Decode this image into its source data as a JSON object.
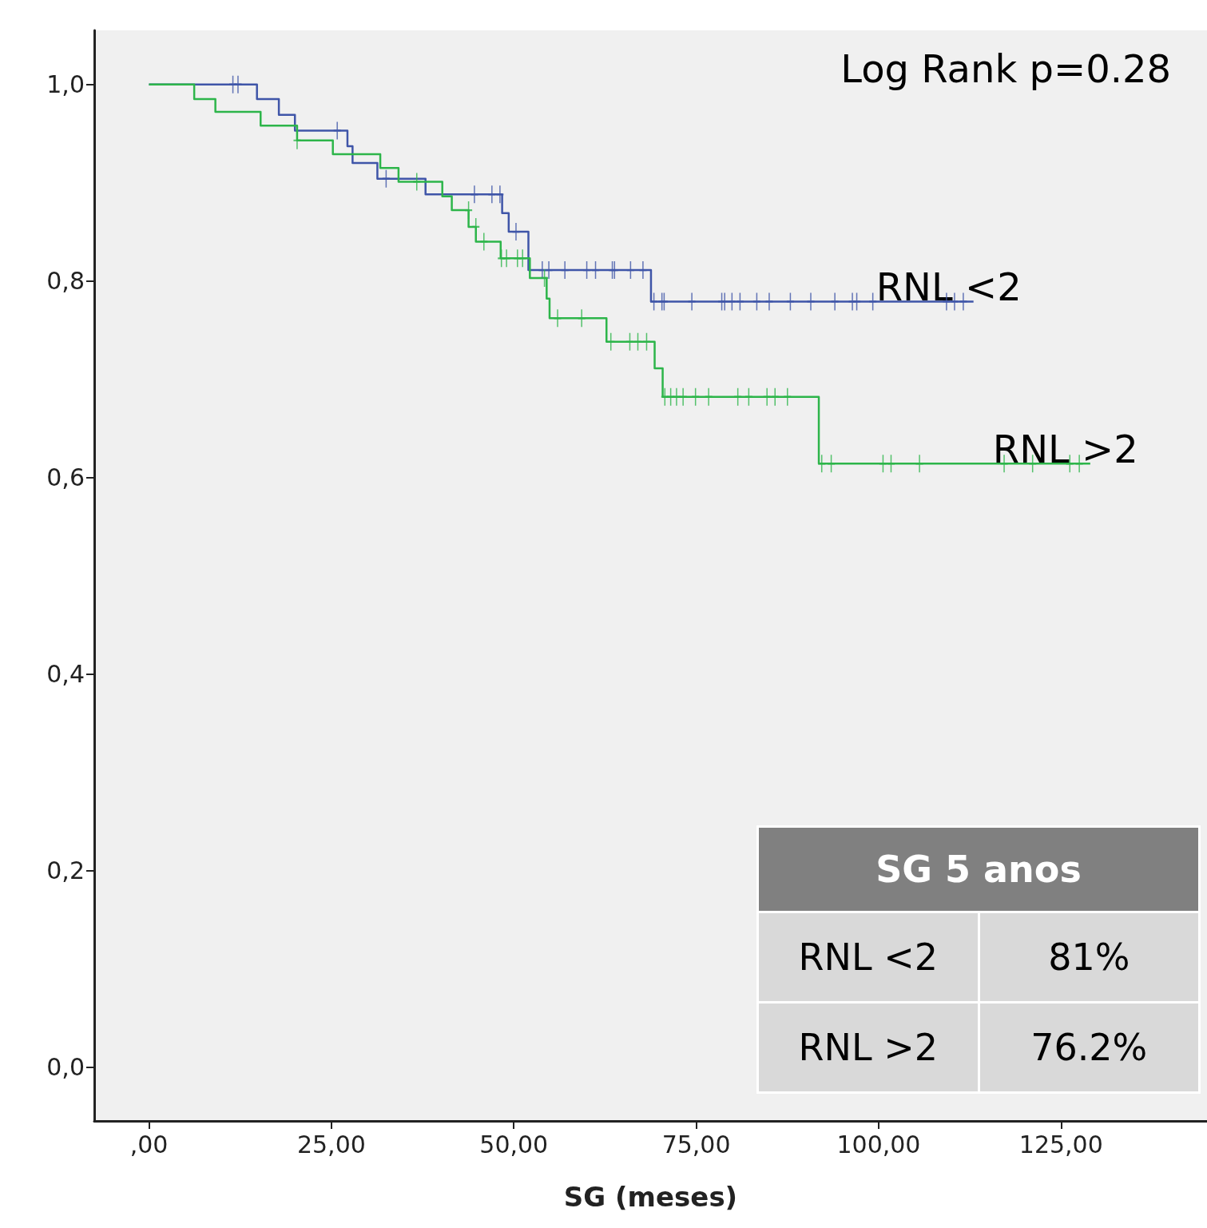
{
  "chart_data": {
    "type": "step",
    "xlabel": "SG (meses)",
    "xlim": [
      -7.5,
      145
    ],
    "xticks": [
      {
        "value": 0,
        "label": ",00"
      },
      {
        "value": 25,
        "label": "25,00"
      },
      {
        "value": 50,
        "label": "50,00"
      },
      {
        "value": 75,
        "label": "75,00"
      },
      {
        "value": 100,
        "label": "100,00"
      },
      {
        "value": 125,
        "label": "125,00"
      }
    ],
    "ylim": [
      -0.055,
      1.055
    ],
    "yticks": [
      {
        "value": 0,
        "label": "0,0"
      },
      {
        "value": 0.2,
        "label": "0,2"
      },
      {
        "value": 0.4,
        "label": "0,4"
      },
      {
        "value": 0.6,
        "label": "0,6"
      },
      {
        "value": 0.8,
        "label": "0,8"
      },
      {
        "value": 1,
        "label": "1,0"
      }
    ],
    "grid": false,
    "legend": false,
    "marker": "none",
    "line_style": "solid",
    "annotations": [
      "Log Rank p=0.28",
      "SG 5 anos",
      "RNL <2",
      "81%",
      "RNL >2",
      "76.2%"
    ],
    "series": [
      {
        "name": "RNL <2",
        "color": "#3f55a8",
        "x": [
          0,
          14.8,
          17.8,
          20.0,
          27.2,
          27.9,
          31.3,
          37.9,
          48.4,
          49.3,
          52.0,
          68.8,
          113.0
        ],
        "values": [
          1,
          0.985,
          0.969,
          0.953,
          0.937,
          0.92,
          0.904,
          0.888,
          0.869,
          0.85,
          0.811,
          0.779,
          0.779
        ]
      },
      {
        "name": "RNL >2",
        "color": "#2db54a",
        "x": [
          0,
          6.2,
          9.1,
          15.3,
          20.3,
          25.2,
          31.7,
          34.2,
          40.2,
          41.5,
          43.8,
          44.8,
          48.2,
          52.2,
          54.5,
          54.9,
          62.7,
          69.3,
          70.4,
          91.8,
          129.0
        ],
        "values": [
          1,
          0.985,
          0.972,
          0.958,
          0.943,
          0.929,
          0.915,
          0.901,
          0.886,
          0.872,
          0.855,
          0.84,
          0.823,
          0.803,
          0.782,
          0.762,
          0.738,
          0.711,
          0.682,
          0.614,
          0.614
        ]
      },
      {
        "type": "scatter",
        "marker": "cross",
        "color": "#3f55a8",
        "x": [
          11.5,
          12.2,
          25.8,
          32.5,
          44.6,
          47.0,
          48.1,
          50.3,
          53.9,
          54.8,
          57.0,
          60.0,
          61.2,
          63.5,
          63.8,
          66.0,
          67.7,
          69.2,
          70.3,
          70.6,
          74.4,
          78.5,
          78.9,
          79.9,
          81.0,
          83.3,
          85.0,
          87.9,
          90.7,
          94.0,
          96.4,
          97.0,
          99.2,
          109.3,
          110.4,
          111.6
        ],
        "values": [
          1,
          1,
          0.953,
          0.904,
          0.888,
          0.888,
          0.888,
          0.85,
          0.811,
          0.811,
          0.811,
          0.811,
          0.811,
          0.811,
          0.811,
          0.811,
          0.811,
          0.779,
          0.779,
          0.779,
          0.779,
          0.779,
          0.779,
          0.779,
          0.779,
          0.779,
          0.779,
          0.779,
          0.779,
          0.779,
          0.779,
          0.779,
          0.779,
          0.779,
          0.779,
          0.779
        ]
      },
      {
        "type": "scatter",
        "marker": "cross",
        "color": "#2db54a",
        "x": [
          20.3,
          36.7,
          43.8,
          44.8,
          45.9,
          48.3,
          49.0,
          50.5,
          51.2,
          54.2,
          56.0,
          59.3,
          63.3,
          65.9,
          67.0,
          68.2,
          70.7,
          71.5,
          72.3,
          73.2,
          74.9,
          76.7,
          80.7,
          82.2,
          84.7,
          85.8,
          87.5,
          92.2,
          93.5,
          100.6,
          101.7,
          105.6,
          117.2,
          121.1,
          126.2,
          127.5
        ],
        "values": [
          0.943,
          0.901,
          0.872,
          0.855,
          0.84,
          0.823,
          0.823,
          0.823,
          0.823,
          0.803,
          0.762,
          0.762,
          0.738,
          0.738,
          0.738,
          0.738,
          0.682,
          0.682,
          0.682,
          0.682,
          0.682,
          0.682,
          0.682,
          0.682,
          0.682,
          0.682,
          0.682,
          0.614,
          0.614,
          0.614,
          0.614,
          0.614,
          0.614,
          0.614,
          0.614,
          0.614
        ]
      }
    ]
  }
}
